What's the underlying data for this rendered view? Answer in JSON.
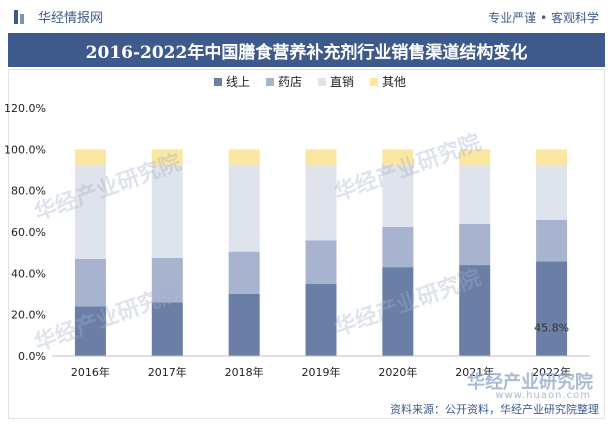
{
  "header": {
    "brand": "华经情报网",
    "slogan": "专业严谨 • 客观科学",
    "title": "2016-2022年中国膳食营养补充剂行业销售渠道结构变化"
  },
  "watermark": {
    "brand": "华经产业研究院",
    "url": "www.huaon.com"
  },
  "source": "资料来源：公开资料，华经产业研究院整理",
  "chart_data": {
    "type": "bar",
    "stacked": true,
    "title": "2016-2022年中国膳食营养补充剂行业销售渠道结构变化",
    "categories": [
      "2016年",
      "2017年",
      "2018年",
      "2019年",
      "2020年",
      "2021年",
      "2022年"
    ],
    "series": [
      {
        "name": "线上",
        "color": "#6b7fa6",
        "values": [
          24.0,
          26.0,
          30.0,
          35.0,
          43.0,
          44.0,
          45.8
        ]
      },
      {
        "name": "药店",
        "color": "#a8b4cf",
        "values": [
          23.0,
          21.5,
          20.5,
          21.0,
          19.5,
          20.0,
          20.0
        ]
      },
      {
        "name": "直销",
        "color": "#dfe3ec",
        "values": [
          45.0,
          45.0,
          42.0,
          36.0,
          29.5,
          28.0,
          26.2
        ]
      },
      {
        "name": "其他",
        "color": "#fbe6a2",
        "values": [
          8.0,
          7.5,
          7.5,
          8.0,
          8.0,
          8.0,
          8.0
        ]
      }
    ],
    "ylim": [
      0,
      120
    ],
    "yticks": [
      "0.0%",
      "20.0%",
      "40.0%",
      "60.0%",
      "80.0%",
      "100.0%",
      "120.0%"
    ],
    "data_labels": [
      {
        "category": "2022年",
        "series": "线上",
        "text": "45.8%"
      }
    ],
    "legend_position": "top"
  }
}
